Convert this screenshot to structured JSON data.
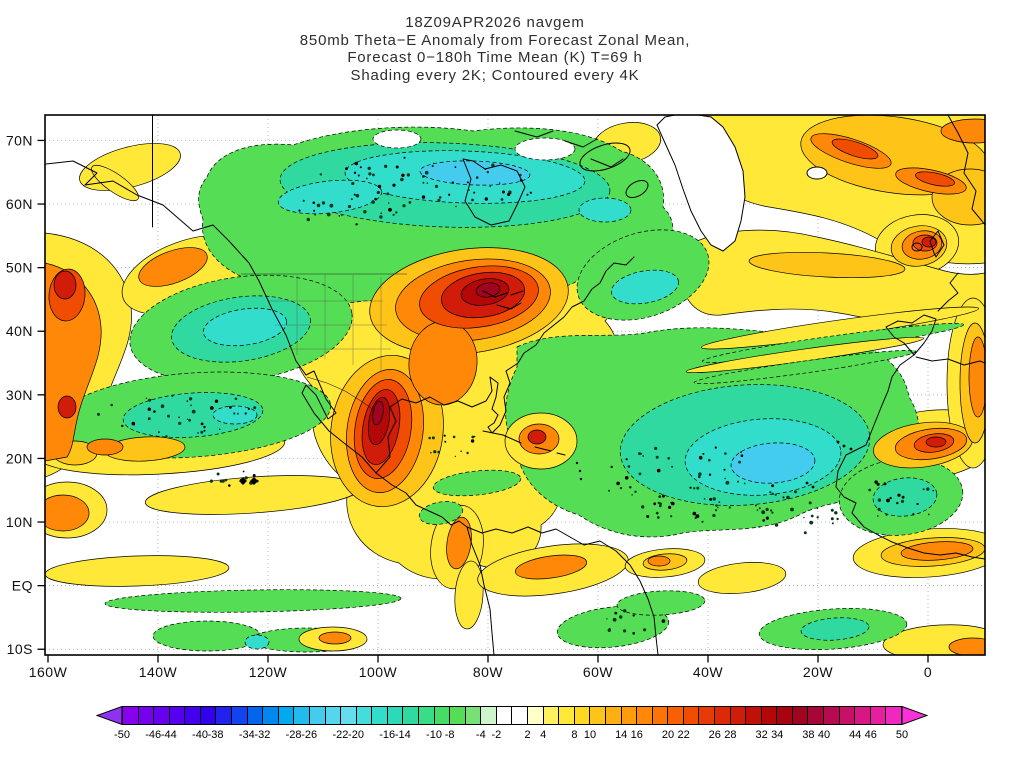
{
  "title": {
    "line1": "18Z09APR2026 navgem",
    "line2": "850mb Theta−E Anomaly from Forecast Zonal Mean,",
    "line3": "Forecast 0−180h Time Mean (K) T=69 h",
    "line4": "Shading every 2K; Contoured every 4K"
  },
  "axes": {
    "lat_ticks": [
      {
        "label": "70N",
        "lat": 70
      },
      {
        "label": "60N",
        "lat": 60
      },
      {
        "label": "50N",
        "lat": 50
      },
      {
        "label": "40N",
        "lat": 40
      },
      {
        "label": "30N",
        "lat": 30
      },
      {
        "label": "20N",
        "lat": 20
      },
      {
        "label": "10N",
        "lat": 10
      },
      {
        "label": "EQ",
        "lat": 0
      },
      {
        "label": "10S",
        "lat": -10
      }
    ],
    "lon_ticks": [
      {
        "label": "160W",
        "lon": -160
      },
      {
        "label": "140W",
        "lon": -140
      },
      {
        "label": "120W",
        "lon": -120
      },
      {
        "label": "100W",
        "lon": -100
      },
      {
        "label": "80W",
        "lon": -80
      },
      {
        "label": "60W",
        "lon": -60
      },
      {
        "label": "40W",
        "lon": -40
      },
      {
        "label": "20W",
        "lon": -20
      },
      {
        "label": "0",
        "lon": 0
      }
    ]
  },
  "colorbar": {
    "min": -50,
    "max": 50,
    "interval": 2,
    "labels": [
      -50,
      -46,
      -44,
      -40,
      -38,
      -34,
      -32,
      -28,
      -26,
      -22,
      -20,
      -16,
      -14,
      -10,
      -8,
      -4,
      -2,
      2,
      4,
      8,
      10,
      14,
      16,
      20,
      22,
      26,
      28,
      32,
      34,
      38,
      40,
      44,
      46,
      50
    ],
    "colors": [
      "#8800EE",
      "#7700EE",
      "#6600EE",
      "#5500EE",
      "#4400EE",
      "#3300EE",
      "#2222EE",
      "#1144EE",
      "#0066EE",
      "#0088EE",
      "#00AAEE",
      "#22BBEE",
      "#44CCEE",
      "#55D5EE",
      "#66DDEE",
      "#44DDDD",
      "#33DDCC",
      "#2ED9B8",
      "#30D9A0",
      "#38DD88",
      "#44DD66",
      "#55DD55",
      "#77E077",
      "#CCF5CC",
      "#FFFFFF",
      "#FFFFFF",
      "#FFFFC8",
      "#FFF060",
      "#FFE838",
      "#FFD920",
      "#FFC418",
      "#FFB010",
      "#FF9C0C",
      "#FF8808",
      "#FC7404",
      "#F86002",
      "#F04C02",
      "#E83A04",
      "#DC2A06",
      "#D01C08",
      "#C21008",
      "#B40808",
      "#A80410",
      "#A00420",
      "#A80638",
      "#B80A50",
      "#C81068",
      "#D81684",
      "#E81EA0",
      "#F028C0"
    ],
    "left_arrow_color": "#9030F0",
    "right_arrow_color": "#FA30D8"
  },
  "palette": {
    "yellow": "#FFE838",
    "gold": "#FFC418",
    "orange": "#FF8808",
    "dorange": "#F04C02",
    "red": "#D01C08",
    "dred": "#B40808",
    "crimson": "#A00420",
    "green": "#55DD55",
    "teal": "#30D9A0",
    "cyan": "#33DDCC",
    "lblue": "#44CCEE",
    "white": "#FFFFFF"
  },
  "chart_data": {
    "type": "heatmap",
    "title": "18Z09APR2026 navgem",
    "subtitle": "850mb Theta−E Anomaly from Forecast Zonal Mean, Forecast 0−180h Time Mean (K) T=69 h",
    "note": "Shading every 2K; Contoured every 4K",
    "model": "navgem",
    "valid_time": "18Z09APR2026",
    "level": "850mb",
    "variable": "Theta-E anomaly from forecast zonal mean",
    "forecast": "0−180h time mean, T=69 h",
    "units": "K",
    "shading_interval_K": 2,
    "contour_interval_K": 4,
    "lon_range_deg": [
      -160,
      11
    ],
    "lat_range_deg": [
      -11,
      74
    ],
    "colorbar_range_K": [
      -50,
      50
    ],
    "x_tick_labels": [
      "160W",
      "140W",
      "120W",
      "100W",
      "80W",
      "60W",
      "40W",
      "20W",
      "0"
    ],
    "y_tick_labels": [
      "70N",
      "60N",
      "50N",
      "40N",
      "30N",
      "20N",
      "10N",
      "EQ",
      "10S"
    ],
    "grid": "dotted at each labeled meridian/parallel",
    "legend_position": "bottom horizontal colorbar with out-of-range arrows",
    "features": [
      {
        "region": "Canada / Arctic (130W–60W, 50–72N)",
        "anomaly_K": "-6 to -22, minima band near Hudson Bay"
      },
      {
        "region": "Central US to Mexico plume (105W–85W, 18–52N)",
        "anomaly_K": "+8 to +38, maxima near 97W 23N and 88W 47N"
      },
      {
        "region": "Northeast Atlantic / Greenland–Europe sector (45W–10E, 55–75N)",
        "anomaly_K": "+4 to +26"
      },
      {
        "region": "Western Europe blob near 5W 50N",
        "anomaly_K": "+8 to +28"
      },
      {
        "region": "Subtropical Atlantic (75W–25W, 8–30N)",
        "anomaly_K": "-6 to -26, minimum near 35W 18N"
      },
      {
        "region": "Eastern Pacific off Baja (145W–110W, 25–40N)",
        "anomaly_K": "-6 to -18"
      },
      {
        "region": "West map edge / Gulf of Alaska (160W, 25–55N)",
        "anomaly_K": "+8 to +30"
      },
      {
        "region": "West Africa coast (20W–0, 10–30N)",
        "anomaly_K": "+8 to +24 with interior -6 to -14"
      },
      {
        "region": "Tropical bands (10S–15N)",
        "anomaly_K": "alternating ±2 to ±10"
      }
    ]
  }
}
